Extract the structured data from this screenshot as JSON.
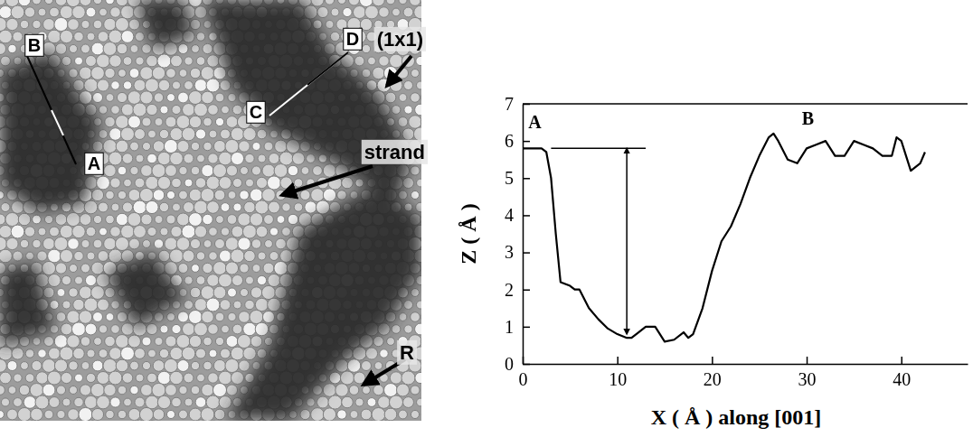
{
  "chart_data": {
    "type": "line",
    "x_label": "X ( Å ) along [001]",
    "y_label": "Z ( Å )",
    "x": [
      0,
      1,
      2,
      2.5,
      3,
      3.5,
      4,
      5,
      5.5,
      6,
      7,
      8,
      9,
      10,
      11,
      11.5,
      12,
      13,
      14,
      15,
      16,
      17,
      17.5,
      18,
      19,
      20,
      21,
      22,
      23,
      24,
      25,
      26,
      26.5,
      27,
      28,
      29,
      30,
      31,
      32,
      33,
      34,
      35,
      36,
      37,
      38,
      39,
      39.5,
      40,
      41,
      42,
      42.5
    ],
    "values": [
      5.8,
      5.8,
      5.8,
      5.7,
      5.0,
      3.5,
      2.2,
      2.1,
      2.0,
      2.0,
      1.5,
      1.2,
      0.95,
      0.8,
      0.7,
      0.7,
      0.8,
      1.0,
      1.0,
      0.6,
      0.65,
      0.85,
      0.7,
      0.8,
      1.5,
      2.5,
      3.3,
      3.7,
      4.3,
      5.0,
      5.6,
      6.1,
      6.2,
      6.0,
      5.5,
      5.4,
      5.8,
      5.9,
      6.0,
      5.6,
      5.6,
      6.0,
      5.9,
      5.8,
      5.6,
      5.6,
      6.1,
      6.0,
      5.2,
      5.4,
      5.7
    ],
    "color": "#000000",
    "xlim": [
      0,
      47
    ],
    "xticks": [
      0,
      10,
      20,
      30,
      40
    ],
    "ylim": [
      0,
      7
    ],
    "yticks": [
      0,
      1,
      2,
      3,
      4,
      5,
      6,
      7
    ],
    "annotations": [
      {
        "text": "A",
        "x": 0.6,
        "y": 6.35
      },
      {
        "text": "B",
        "x": 29.5,
        "y": 6.45
      }
    ],
    "measure": {
      "x": 11,
      "y_from": 0.8,
      "y_to": 5.8,
      "line_x_from": 3,
      "line_x_to": 13
    }
  },
  "image": {
    "labels": [
      "B",
      "A",
      "C",
      "D",
      "(1x1)",
      "strand",
      "R"
    ]
  }
}
